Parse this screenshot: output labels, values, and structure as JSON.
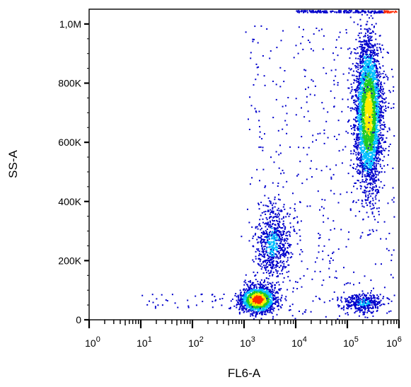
{
  "chart_data": {
    "type": "scatter",
    "title": "",
    "xlabel": "FL6-A",
    "ylabel": "SS-A",
    "x_scale": "log",
    "xlim": [
      1,
      1000000
    ],
    "ylim": [
      0,
      1050000
    ],
    "x_ticks": [
      {
        "base": "10",
        "exp": "0",
        "value": 1
      },
      {
        "base": "10",
        "exp": "1",
        "value": 10
      },
      {
        "base": "10",
        "exp": "2",
        "value": 100
      },
      {
        "base": "10",
        "exp": "3",
        "value": 1000
      },
      {
        "base": "10",
        "exp": "4",
        "value": 10000
      },
      {
        "base": "10",
        "exp": "5",
        "value": 100000
      },
      {
        "base": "10",
        "exp": "6",
        "value": 1000000
      }
    ],
    "y_ticks": [
      {
        "label": "0",
        "value": 0
      },
      {
        "label": "200K",
        "value": 200000
      },
      {
        "label": "400K",
        "value": 400000
      },
      {
        "label": "600K",
        "value": 600000
      },
      {
        "label": "800K",
        "value": 800000
      },
      {
        "label": "1,0M",
        "value": 1000000
      }
    ],
    "density_colormap": [
      "#0000cc",
      "#00bfff",
      "#22cc22",
      "#ffee00",
      "#ff2a00"
    ],
    "populations": [
      {
        "center_fl6": 1800,
        "center_ss": 70000,
        "peak_density": "red"
      },
      {
        "center_fl6": 3500,
        "center_ss": 260000,
        "peak_density": "blue"
      },
      {
        "center_fl6": 250000,
        "center_ss": 700000,
        "peak_density": "yellow"
      },
      {
        "center_fl6": 200000,
        "center_ss": 60000,
        "peak_density": "blue"
      }
    ],
    "grid": false,
    "legend": "none"
  }
}
